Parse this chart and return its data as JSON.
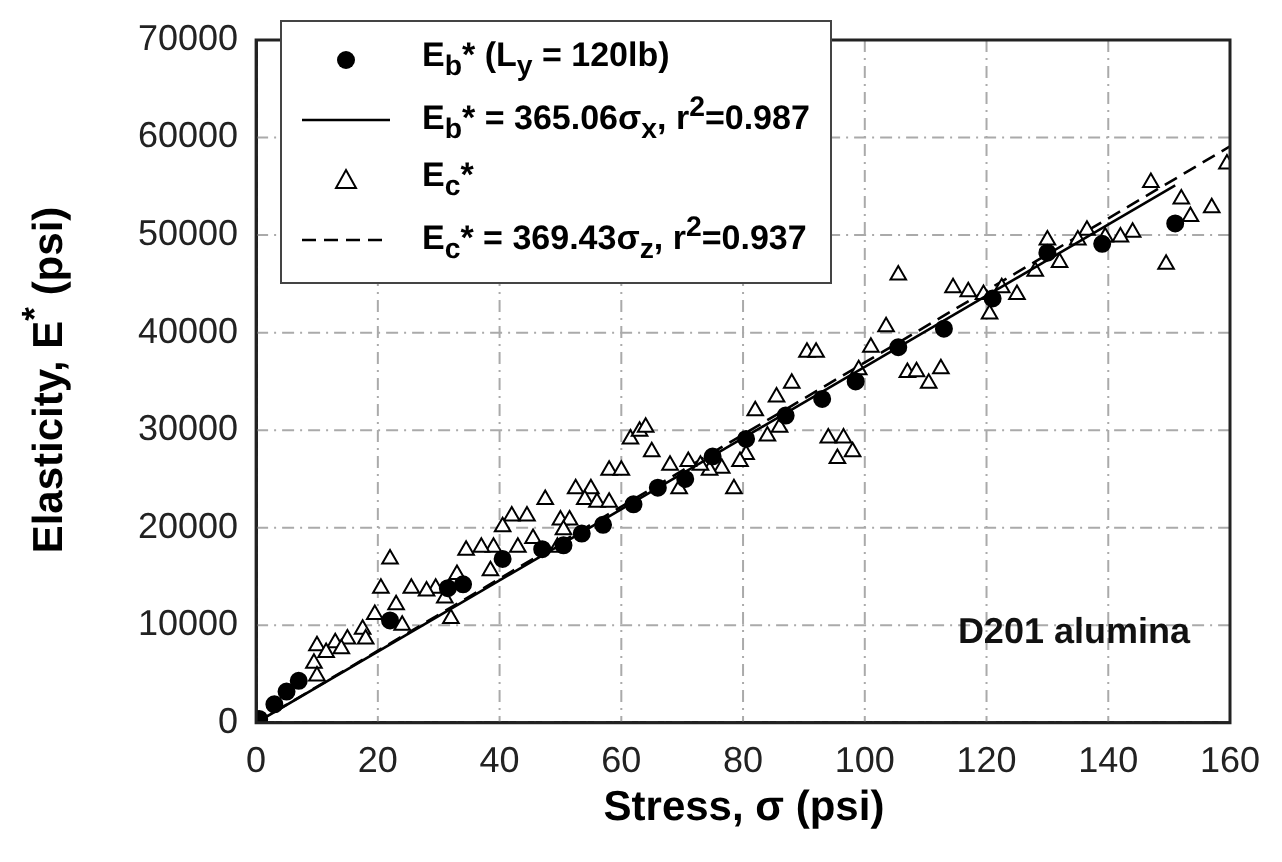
{
  "chart_data": {
    "type": "scatter",
    "xlabel": "Stress, σ (psi)",
    "ylabel": "Elasticity, E$^{*}$ (psi)",
    "xlim": [
      0,
      160
    ],
    "xticks": [
      0,
      20,
      40,
      60,
      80,
      100,
      120,
      140,
      160
    ],
    "ylim": [
      0,
      70000
    ],
    "yticks": [
      0,
      10000,
      20000,
      30000,
      40000,
      50000,
      60000,
      70000
    ],
    "grid": true,
    "legend": "top left",
    "annotations": [
      "D201 alumina"
    ],
    "series": [
      {
        "name": "E$_{b}$* (L$_{y}$ = 120lb)",
        "marker": "circle",
        "color": "#000000",
        "x": [
          0.5,
          3,
          5,
          7,
          22,
          31.5,
          34,
          40.5,
          47,
          50.5,
          53.5,
          57,
          62,
          66,
          70.5,
          75,
          80.5,
          87,
          93,
          98.5,
          105.5,
          113,
          121,
          130,
          139,
          151
        ],
        "values": [
          400,
          1900,
          3200,
          4300,
          10500,
          13800,
          14200,
          16800,
          17800,
          18200,
          19400,
          20300,
          22400,
          24100,
          25000,
          27300,
          29100,
          31500,
          33200,
          35000,
          38500,
          40400,
          43500,
          48200,
          49100,
          51200
        ]
      },
      {
        "name": "E$_{b}$* = 365.06σ$_{x}$, r$^{2}$=0.987",
        "type": "line",
        "marker": "none",
        "line_style": "solid",
        "color": "#000000",
        "x": [
          0,
          151
        ],
        "values": [
          0,
          55100
        ]
      },
      {
        "name": "E$_{c}$*",
        "marker": "triangle",
        "color": "#000000",
        "x": [
          159.5,
          147,
          152,
          153.5,
          157,
          149.5,
          144,
          142,
          139.5,
          136.5,
          135,
          132,
          130,
          128,
          125,
          122.5,
          120.5,
          119.5,
          117,
          114.5,
          105.5,
          103.5,
          101,
          99,
          90.5,
          92,
          88,
          85.5,
          107,
          108.5,
          110.5,
          112.5,
          82,
          84,
          86,
          94,
          96.5,
          95.5,
          98,
          80.5,
          79.5,
          78.5,
          76.5,
          74.5,
          73,
          71,
          69.5,
          68,
          65,
          61.5,
          63,
          64,
          58,
          60,
          52.5,
          55,
          54,
          56,
          58,
          47.5,
          50,
          51.5,
          50.5,
          44.5,
          42,
          40.5,
          45.5,
          43,
          49.5,
          39,
          37,
          34.5,
          38.5,
          33,
          29.5,
          28,
          25.5,
          31,
          32,
          22,
          20.5,
          23,
          24,
          19.5,
          17.5,
          15,
          13,
          10,
          9.5,
          10,
          11.5,
          14,
          18
        ],
        "values": [
          57300,
          55400,
          53700,
          51900,
          52800,
          47000,
          50300,
          49800,
          49800,
          50500,
          49500,
          47200,
          49500,
          46300,
          43900,
          44600,
          41900,
          43900,
          44200,
          44600,
          45900,
          40600,
          38500,
          36200,
          38000,
          38000,
          34800,
          33400,
          35900,
          36000,
          34800,
          36300,
          32000,
          29400,
          30300,
          29200,
          29200,
          27100,
          27800,
          27500,
          26800,
          24000,
          26100,
          25900,
          26400,
          26800,
          24000,
          26400,
          27800,
          29100,
          29900,
          30300,
          25900,
          25900,
          24000,
          24000,
          22900,
          22600,
          22600,
          22900,
          20800,
          20800,
          19800,
          21200,
          21200,
          20100,
          18900,
          18000,
          18000,
          18000,
          18000,
          17700,
          15600,
          15200,
          13800,
          13500,
          13800,
          12800,
          10700,
          16800,
          13800,
          12100,
          10000,
          11100,
          9600,
          8600,
          8200,
          7900,
          6100,
          4800,
          7200,
          7600,
          8600
        ]
      },
      {
        "name": "E$_{c}$* = 369.43σ$_{z}$, r$^{2}$=0.937",
        "type": "line",
        "marker": "none",
        "line_style": "dashed",
        "color": "#000000",
        "x": [
          0,
          160
        ],
        "values": [
          0,
          59100
        ]
      }
    ]
  }
}
